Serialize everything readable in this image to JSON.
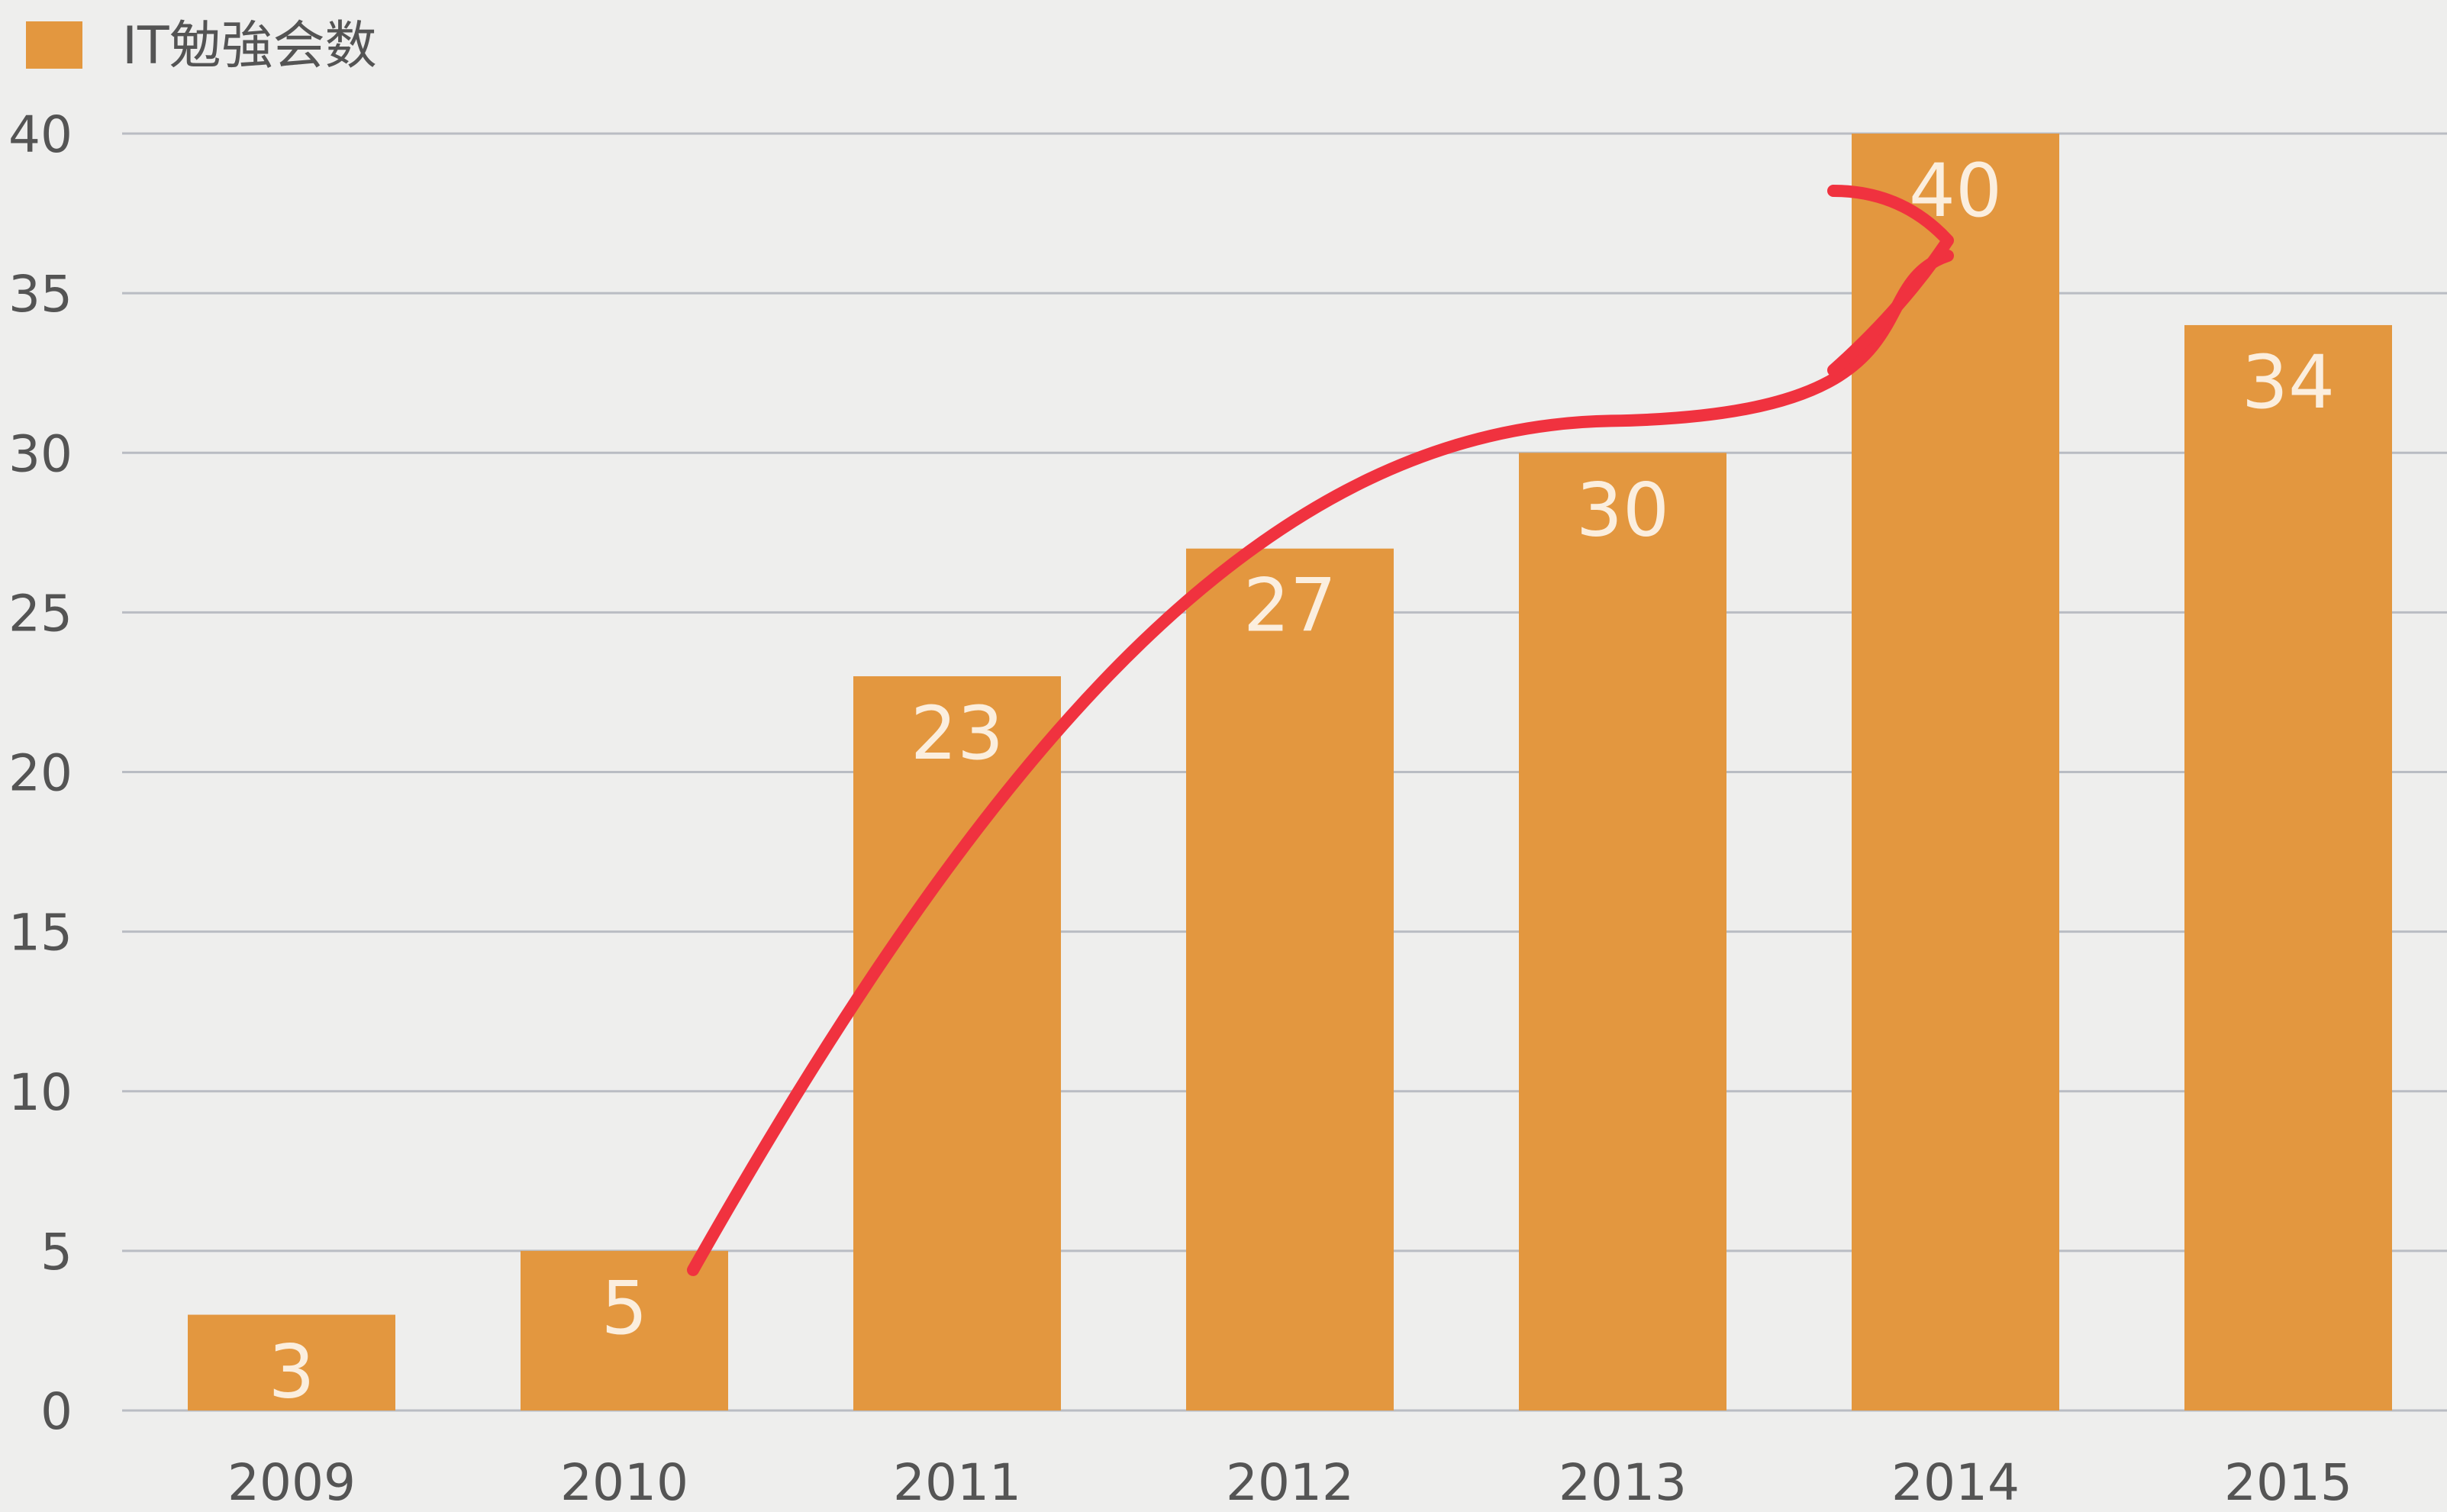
{
  "chart_data": {
    "type": "bar",
    "title": "",
    "xlabel": "",
    "ylabel": "",
    "categories": [
      "2009",
      "2010",
      "2011",
      "2012",
      "2013",
      "2014",
      "2015"
    ],
    "series": [
      {
        "name": "IT勉強会数",
        "values": [
          3,
          5,
          23,
          27,
          30,
          40,
          34
        ]
      }
    ],
    "data_labels": [
      "3",
      "5",
      "23",
      "27",
      "30",
      "40",
      "34"
    ],
    "y_ticks": [
      "0",
      "5",
      "10",
      "15",
      "20",
      "25",
      "30",
      "35",
      "40"
    ],
    "ylim": [
      0,
      40
    ],
    "grid": true,
    "legend": {
      "position": "top-left"
    },
    "annotation": {
      "type": "arrow",
      "color": "#f0323f",
      "from_category": "2010",
      "to_category": "2014"
    }
  },
  "colors": {
    "bar": "#e3973f",
    "background": "#eeeeed",
    "gridline": "#b9bcc3",
    "axis_text": "#545454",
    "data_label": "#fbeede",
    "arrow": "#f0323f"
  }
}
